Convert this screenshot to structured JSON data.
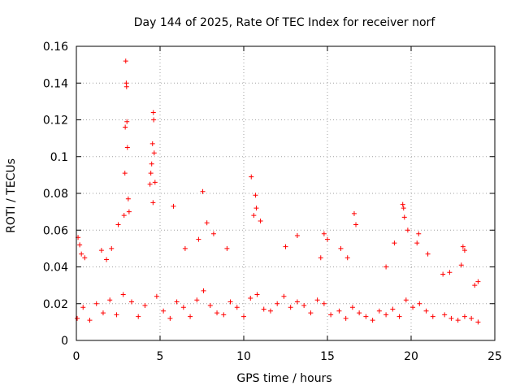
{
  "chart_data": {
    "type": "scatter",
    "title": "Day 144 of 2025, Rate Of TEC Index for receiver norf",
    "xlabel": "GPS time / hours",
    "ylabel": "ROTI / TECUs",
    "xlim": [
      0,
      25
    ],
    "ylim": [
      0,
      0.16
    ],
    "xticks": [
      0,
      5,
      10,
      15,
      20,
      25
    ],
    "xtick_labels": [
      "0",
      "5",
      "10",
      "15",
      "20",
      "25"
    ],
    "yticks": [
      0,
      0.02,
      0.04,
      0.06,
      0.08,
      0.1,
      0.12,
      0.14,
      0.16
    ],
    "ytick_labels": [
      "0",
      "0.02",
      "0.04",
      "0.06",
      "0.08",
      "0.1",
      "0.12",
      "0.14",
      "0.16"
    ],
    "grid": true,
    "marker": "+",
    "series": [
      {
        "name": "ROTI",
        "color": "#ff0000",
        "x": [
          2.95,
          2.98,
          3.0,
          3.02,
          3.05,
          2.9,
          3.1,
          2.92,
          3.15,
          2.85,
          4.6,
          4.62,
          4.55,
          4.65,
          4.5,
          4.45,
          4.7,
          4.4,
          4.58,
          10.45,
          10.7,
          10.75,
          10.6,
          7.55,
          5.8,
          16.6,
          16.7,
          19.5,
          19.55,
          19.6,
          20.45,
          20.35,
          23.1,
          23.2,
          0.1,
          0.2,
          0.3,
          0.5,
          1.5,
          1.8,
          2.1,
          2.5,
          6.5,
          7.3,
          7.8,
          8.2,
          9.0,
          11.0,
          12.5,
          13.2,
          14.6,
          14.8,
          15.0,
          15.8,
          16.2,
          18.5,
          19.0,
          19.8,
          21.0,
          21.9,
          22.3,
          23.0,
          23.8,
          24.0,
          0.05,
          0.4,
          0.8,
          1.2,
          1.6,
          2.0,
          2.4,
          2.8,
          3.3,
          3.7,
          4.1,
          4.8,
          5.2,
          5.6,
          6.0,
          6.4,
          6.8,
          7.2,
          7.6,
          8.0,
          8.4,
          8.8,
          9.2,
          9.6,
          10.0,
          10.4,
          10.8,
          11.2,
          11.6,
          12.0,
          12.4,
          12.8,
          13.2,
          13.6,
          14.0,
          14.4,
          14.8,
          15.2,
          15.7,
          16.1,
          16.5,
          16.9,
          17.3,
          17.7,
          18.1,
          18.5,
          18.9,
          19.3,
          19.7,
          20.1,
          20.5,
          20.9,
          21.3,
          22.0,
          22.4,
          22.8,
          23.2,
          23.6,
          24.0
        ],
        "y": [
          0.152,
          0.14,
          0.138,
          0.119,
          0.105,
          0.091,
          0.077,
          0.116,
          0.07,
          0.068,
          0.124,
          0.12,
          0.107,
          0.102,
          0.096,
          0.091,
          0.086,
          0.085,
          0.075,
          0.089,
          0.079,
          0.072,
          0.068,
          0.081,
          0.073,
          0.069,
          0.063,
          0.074,
          0.072,
          0.067,
          0.058,
          0.053,
          0.051,
          0.049,
          0.056,
          0.052,
          0.047,
          0.045,
          0.049,
          0.044,
          0.05,
          0.063,
          0.05,
          0.055,
          0.064,
          0.058,
          0.05,
          0.065,
          0.051,
          0.057,
          0.045,
          0.058,
          0.055,
          0.05,
          0.045,
          0.04,
          0.053,
          0.06,
          0.047,
          0.036,
          0.037,
          0.041,
          0.03,
          0.032,
          0.012,
          0.018,
          0.011,
          0.02,
          0.015,
          0.022,
          0.014,
          0.025,
          0.021,
          0.013,
          0.019,
          0.024,
          0.016,
          0.012,
          0.021,
          0.018,
          0.013,
          0.022,
          0.027,
          0.019,
          0.015,
          0.014,
          0.021,
          0.018,
          0.013,
          0.023,
          0.025,
          0.017,
          0.016,
          0.02,
          0.024,
          0.018,
          0.021,
          0.019,
          0.015,
          0.022,
          0.02,
          0.014,
          0.016,
          0.012,
          0.018,
          0.015,
          0.013,
          0.011,
          0.016,
          0.014,
          0.017,
          0.013,
          0.022,
          0.018,
          0.02,
          0.016,
          0.013,
          0.014,
          0.012,
          0.011,
          0.013,
          0.012,
          0.01
        ]
      }
    ]
  }
}
